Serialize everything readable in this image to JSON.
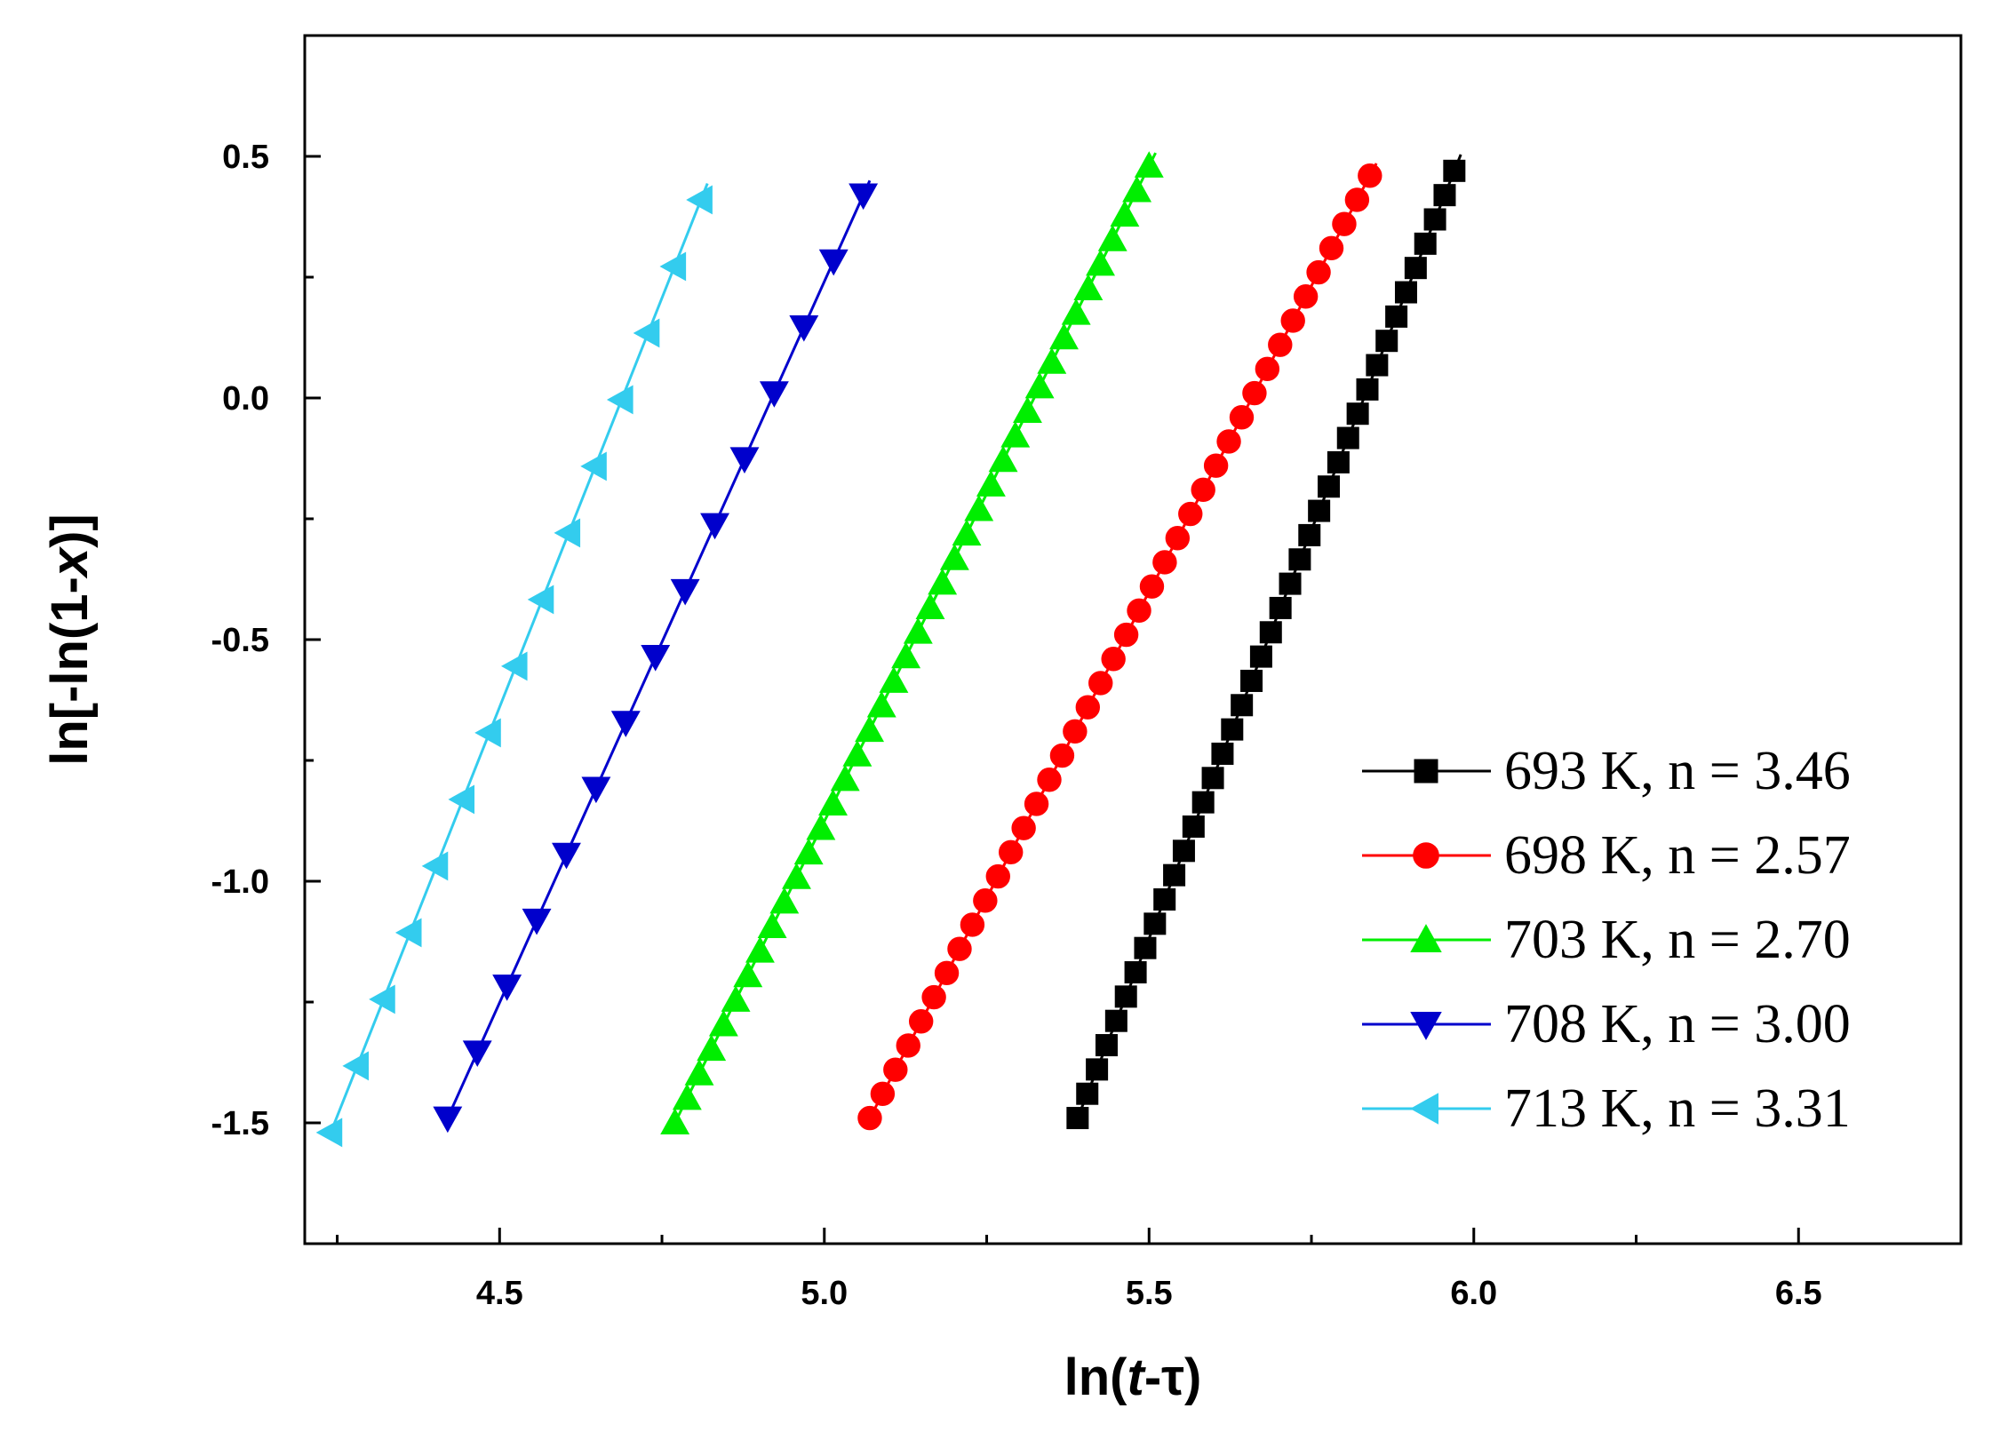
{
  "chart_data": {
    "type": "line",
    "title": "",
    "xlabel": {
      "prefix": "ln(",
      "italic": "t",
      "suffix": "-τ)"
    },
    "ylabel": {
      "prefix": "ln[-ln(1-",
      "italic": "x",
      "suffix": ")]"
    },
    "xlim": [
      4.2,
      6.75
    ],
    "ylim": [
      -1.75,
      0.75
    ],
    "xticks": [
      4.5,
      5.0,
      5.5,
      6.0,
      6.5
    ],
    "xtick_labels": [
      "4.5",
      "5.0",
      "5.5",
      "6.0",
      "6.5"
    ],
    "yticks": [
      -1.5,
      -1.0,
      -0.5,
      0.0,
      0.5
    ],
    "ytick_labels": [
      "-1.5",
      "-1.0",
      "-0.5",
      "0.0",
      "0.5"
    ],
    "grid": false,
    "legend_position": "bottom-right",
    "series": [
      {
        "name": "693 K, n = 3.46",
        "color": "#000000",
        "marker": "square",
        "x_start": 5.39,
        "x_end": 5.97,
        "y_start": -1.49,
        "y_end": 0.47,
        "count": 40
      },
      {
        "name": "698 K, n = 2.57",
        "color": "#ff0000",
        "marker": "circle",
        "x_start": 5.07,
        "x_end": 5.84,
        "y_start": -1.49,
        "y_end": 0.46,
        "count": 40
      },
      {
        "name": "703 K, n = 2.70",
        "color": "#00ee00",
        "marker": "triangle-up",
        "x_start": 4.77,
        "x_end": 5.5,
        "y_start": -1.5,
        "y_end": 0.48,
        "count": 40
      },
      {
        "name": "708 K, n = 3.00",
        "color": "#0000cc",
        "marker": "triangle-down",
        "x_start": 4.42,
        "x_end": 5.06,
        "y_start": -1.49,
        "y_end": 0.42,
        "count": 15
      },
      {
        "name": "713 K, n = 3.31",
        "color": "#33ccee",
        "marker": "triangle-left",
        "x_start": 4.24,
        "x_end": 4.81,
        "y_start": -1.52,
        "y_end": 0.41,
        "count": 15
      }
    ]
  }
}
